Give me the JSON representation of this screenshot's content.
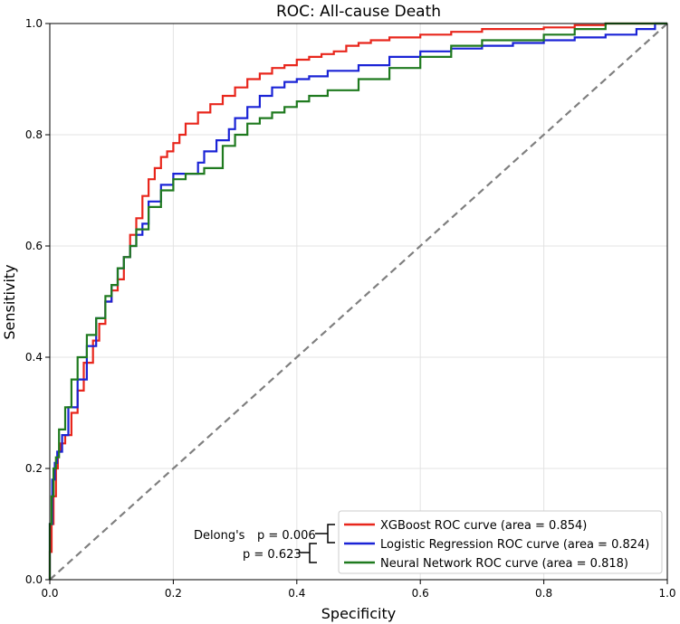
{
  "chart_data": {
    "type": "line",
    "title": "ROC: All-cause Death",
    "xlabel": "Specificity",
    "ylabel": "Sensitivity",
    "xlim": [
      0,
      1
    ],
    "ylim": [
      0,
      1
    ],
    "x_ticks": [
      "0.0",
      "0.2",
      "0.4",
      "0.6",
      "0.8",
      "1.0"
    ],
    "y_ticks": [
      "0.0",
      "0.2",
      "0.4",
      "0.6",
      "0.8",
      "1.0"
    ],
    "grid": true,
    "legend_position": "lower-right",
    "series": [
      {
        "name": "XGBoost ROC curve (area = 0.854)",
        "color": "#e8261c",
        "points": [
          [
            0,
            0
          ],
          [
            0.003,
            0.05
          ],
          [
            0.006,
            0.1
          ],
          [
            0.01,
            0.15
          ],
          [
            0.013,
            0.2
          ],
          [
            0.017,
            0.23
          ],
          [
            0.025,
            0.245
          ],
          [
            0.035,
            0.26
          ],
          [
            0.045,
            0.3
          ],
          [
            0.055,
            0.34
          ],
          [
            0.07,
            0.39
          ],
          [
            0.08,
            0.43
          ],
          [
            0.09,
            0.46
          ],
          [
            0.1,
            0.5
          ],
          [
            0.11,
            0.52
          ],
          [
            0.12,
            0.54
          ],
          [
            0.13,
            0.58
          ],
          [
            0.14,
            0.62
          ],
          [
            0.15,
            0.65
          ],
          [
            0.16,
            0.69
          ],
          [
            0.17,
            0.72
          ],
          [
            0.18,
            0.74
          ],
          [
            0.19,
            0.76
          ],
          [
            0.2,
            0.77
          ],
          [
            0.21,
            0.785
          ],
          [
            0.22,
            0.8
          ],
          [
            0.24,
            0.82
          ],
          [
            0.26,
            0.84
          ],
          [
            0.28,
            0.855
          ],
          [
            0.3,
            0.87
          ],
          [
            0.32,
            0.885
          ],
          [
            0.34,
            0.9
          ],
          [
            0.36,
            0.91
          ],
          [
            0.38,
            0.92
          ],
          [
            0.4,
            0.925
          ],
          [
            0.42,
            0.935
          ],
          [
            0.44,
            0.94
          ],
          [
            0.46,
            0.945
          ],
          [
            0.48,
            0.95
          ],
          [
            0.5,
            0.96
          ],
          [
            0.52,
            0.965
          ],
          [
            0.55,
            0.97
          ],
          [
            0.6,
            0.975
          ],
          [
            0.65,
            0.98
          ],
          [
            0.7,
            0.985
          ],
          [
            0.8,
            0.99
          ],
          [
            0.85,
            0.993
          ],
          [
            0.9,
            0.997
          ],
          [
            1,
            1
          ]
        ]
      },
      {
        "name": "Logistic Regression ROC curve (area = 0.824)",
        "color": "#1a23d6",
        "points": [
          [
            0,
            0
          ],
          [
            0.004,
            0.1
          ],
          [
            0.008,
            0.18
          ],
          [
            0.012,
            0.21
          ],
          [
            0.02,
            0.23
          ],
          [
            0.03,
            0.26
          ],
          [
            0.045,
            0.31
          ],
          [
            0.06,
            0.36
          ],
          [
            0.075,
            0.42
          ],
          [
            0.09,
            0.47
          ],
          [
            0.1,
            0.5
          ],
          [
            0.11,
            0.53
          ],
          [
            0.12,
            0.56
          ],
          [
            0.13,
            0.58
          ],
          [
            0.14,
            0.6
          ],
          [
            0.15,
            0.62
          ],
          [
            0.16,
            0.64
          ],
          [
            0.18,
            0.68
          ],
          [
            0.2,
            0.71
          ],
          [
            0.22,
            0.73
          ],
          [
            0.24,
            0.73
          ],
          [
            0.25,
            0.75
          ],
          [
            0.27,
            0.77
          ],
          [
            0.29,
            0.79
          ],
          [
            0.3,
            0.81
          ],
          [
            0.32,
            0.83
          ],
          [
            0.34,
            0.85
          ],
          [
            0.36,
            0.87
          ],
          [
            0.38,
            0.885
          ],
          [
            0.4,
            0.895
          ],
          [
            0.42,
            0.9
          ],
          [
            0.45,
            0.905
          ],
          [
            0.5,
            0.915
          ],
          [
            0.55,
            0.925
          ],
          [
            0.6,
            0.94
          ],
          [
            0.65,
            0.95
          ],
          [
            0.7,
            0.955
          ],
          [
            0.75,
            0.96
          ],
          [
            0.8,
            0.965
          ],
          [
            0.85,
            0.97
          ],
          [
            0.9,
            0.975
          ],
          [
            0.95,
            0.98
          ],
          [
            0.98,
            0.99
          ],
          [
            1,
            1
          ]
        ]
      },
      {
        "name": "Neural Network ROC curve (area = 0.818)",
        "color": "#1f7a1f",
        "points": [
          [
            0,
            0
          ],
          [
            0.003,
            0.1
          ],
          [
            0.006,
            0.15
          ],
          [
            0.01,
            0.2
          ],
          [
            0.015,
            0.22
          ],
          [
            0.025,
            0.27
          ],
          [
            0.035,
            0.31
          ],
          [
            0.045,
            0.36
          ],
          [
            0.06,
            0.4
          ],
          [
            0.075,
            0.44
          ],
          [
            0.09,
            0.47
          ],
          [
            0.1,
            0.51
          ],
          [
            0.11,
            0.53
          ],
          [
            0.12,
            0.56
          ],
          [
            0.13,
            0.58
          ],
          [
            0.14,
            0.6
          ],
          [
            0.16,
            0.63
          ],
          [
            0.18,
            0.67
          ],
          [
            0.2,
            0.7
          ],
          [
            0.22,
            0.72
          ],
          [
            0.25,
            0.73
          ],
          [
            0.28,
            0.74
          ],
          [
            0.3,
            0.78
          ],
          [
            0.32,
            0.8
          ],
          [
            0.34,
            0.82
          ],
          [
            0.36,
            0.83
          ],
          [
            0.38,
            0.84
          ],
          [
            0.4,
            0.85
          ],
          [
            0.42,
            0.86
          ],
          [
            0.45,
            0.87
          ],
          [
            0.5,
            0.88
          ],
          [
            0.55,
            0.9
          ],
          [
            0.6,
            0.92
          ],
          [
            0.65,
            0.94
          ],
          [
            0.7,
            0.96
          ],
          [
            0.8,
            0.97
          ],
          [
            0.85,
            0.98
          ],
          [
            0.9,
            0.99
          ],
          [
            1,
            1
          ]
        ]
      },
      {
        "name": "",
        "color": "#7f7f7f",
        "style": "dashed",
        "points": [
          [
            0,
            0
          ],
          [
            1,
            1
          ]
        ]
      }
    ],
    "annotations": {
      "delong_label": "Delong's",
      "p1": "p = 0.006",
      "p2": "p = 0.623"
    }
  }
}
